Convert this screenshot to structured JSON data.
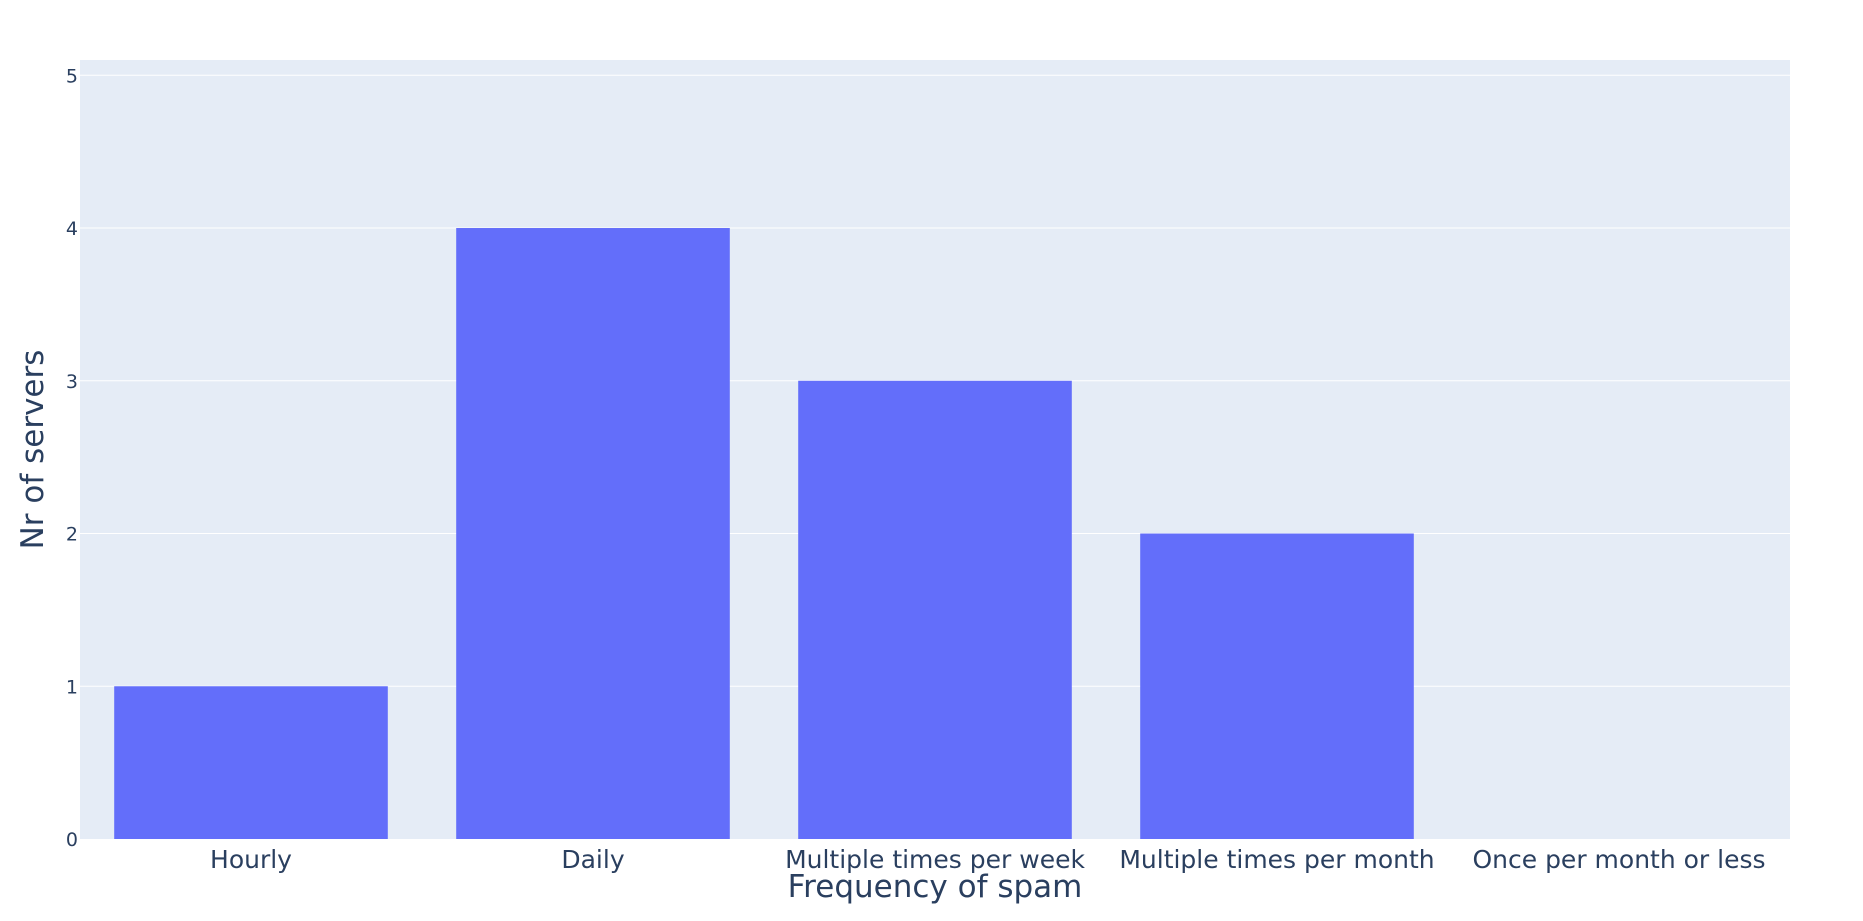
{
  "chart_data": {
    "type": "bar",
    "categories": [
      "Hourly",
      "Daily",
      "Multiple times per week",
      "Multiple times per month",
      "Once per month or less"
    ],
    "values": [
      1,
      4,
      3,
      2,
      0
    ],
    "title": "",
    "xlabel": "Frequency of spam",
    "ylabel": "Nr of servers",
    "ylim": [
      0,
      5.1
    ],
    "yticks": [
      0,
      1,
      2,
      3,
      4,
      5
    ],
    "grid": true,
    "legend": "none",
    "colors": {
      "bar": "#636efa",
      "plot_background": "#e5ecf6",
      "grid": "#ffffff",
      "text": "#2a3f5f"
    }
  }
}
